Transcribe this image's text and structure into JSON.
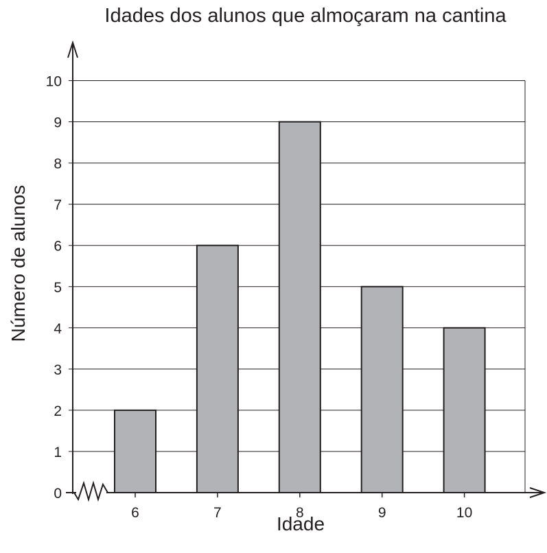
{
  "chart_data": {
    "type": "bar",
    "title": "Idades dos alunos que almoçaram na cantina",
    "xlabel": "Idade",
    "ylabel": "Número de alunos",
    "categories": [
      "6",
      "7",
      "8",
      "9",
      "10"
    ],
    "values": [
      2,
      6,
      9,
      5,
      4
    ],
    "ylim": [
      0,
      10
    ],
    "yticks": [
      "0",
      "1",
      "2",
      "3",
      "4",
      "5",
      "6",
      "7",
      "8",
      "9",
      "10"
    ],
    "grid": true,
    "axis_break": true,
    "legend": "none",
    "colors": {
      "bar_fill": "#b1b3b6",
      "bar_stroke": "#231f20",
      "grid": "#231f20",
      "text": "#231f20",
      "background": "#ffffff"
    }
  }
}
